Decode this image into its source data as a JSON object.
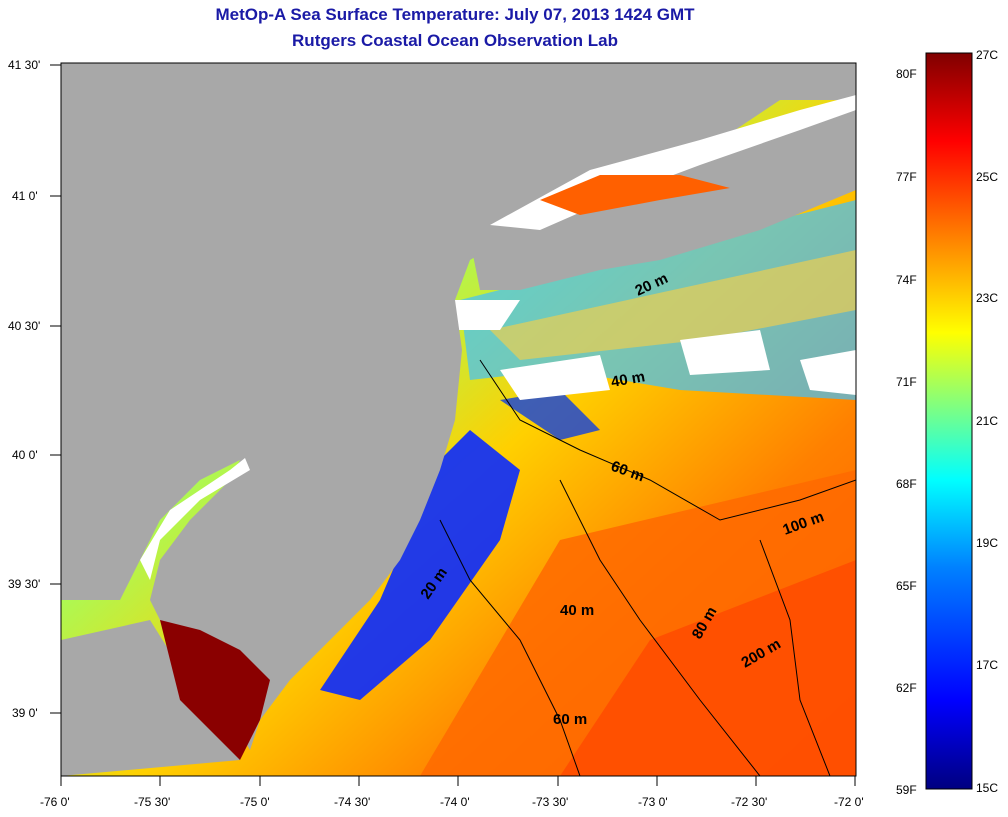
{
  "map": {
    "title_line1": "MetOp-A Sea Surface Temperature:  July 07, 2013 1424 GMT",
    "title_line2": "Rutgers Coastal Ocean Observation Lab",
    "lat_labels": [
      "41 30'",
      "41 0'",
      "40 30'",
      "40 0'",
      "39 30'",
      "39 0'"
    ],
    "lon_labels": [
      "-76 0'",
      "-75 30'",
      "-75 0'",
      "-74 30'",
      "-74 0'",
      "-73 30'",
      "-73 0'",
      "-72 30'",
      "-72 0'"
    ],
    "contour_labels": [
      "20 m",
      "40 m",
      "60 m",
      "20 m",
      "40 m",
      "60 m",
      "100 m",
      "80 m",
      "200 m"
    ]
  },
  "colorbar": {
    "fahrenheit_labels": [
      "80F",
      "77F",
      "74F",
      "71F",
      "68F",
      "65F",
      "62F",
      "59F"
    ],
    "celsius_labels": [
      "27C",
      "25C",
      "23C",
      "21C",
      "19C",
      "17C",
      "15C"
    ],
    "colors": [
      "#000080",
      "#0000ff",
      "#0080ff",
      "#00ffff",
      "#80ff80",
      "#ffff00",
      "#ff8000",
      "#ff0000",
      "#800000"
    ]
  },
  "colors": {
    "land": "#a8a8a8",
    "no_data": "#ffffff",
    "title": "#1a1aa6"
  }
}
